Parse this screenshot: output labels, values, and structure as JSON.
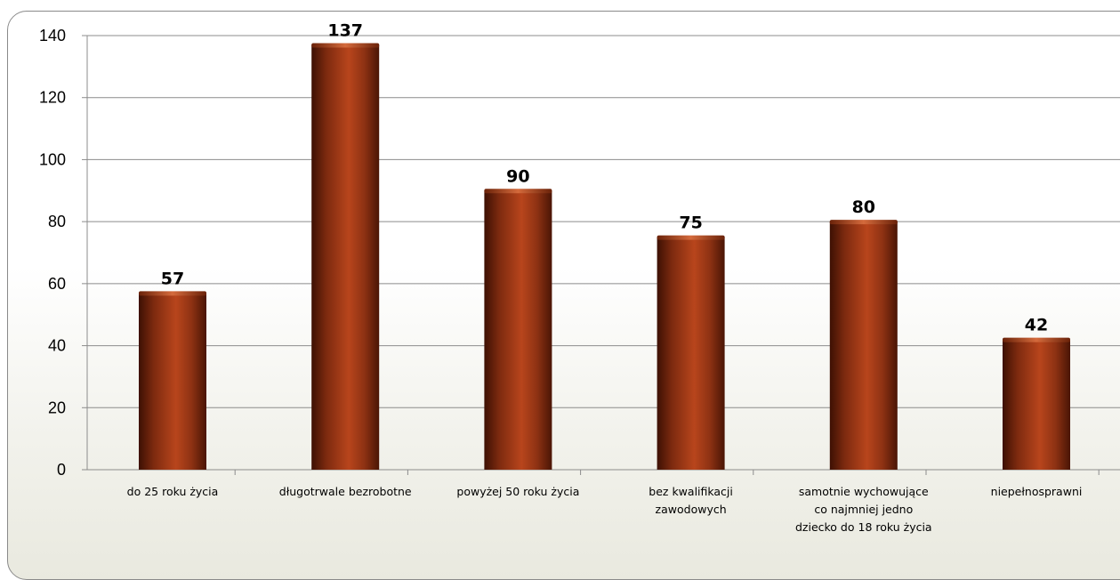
{
  "chart_data": {
    "type": "bar",
    "categories": [
      [
        "do 25 roku życia"
      ],
      [
        "długotrwale bezrobotne"
      ],
      [
        "powyżej 50 roku życia"
      ],
      [
        "bez kwalifikacji",
        "zawodowych"
      ],
      [
        "samotnie wychowujące",
        "co najmniej jedno",
        "dziecko do 18 roku życia"
      ],
      [
        "niepełnosprawni"
      ]
    ],
    "values": [
      57,
      137,
      90,
      75,
      80,
      42
    ],
    "data_labels": [
      "57",
      "137",
      "90",
      "75",
      "80",
      "42"
    ],
    "y_ticks": [
      "0",
      "20",
      "40",
      "60",
      "80",
      "100",
      "120",
      "140"
    ],
    "ylim": [
      0,
      140
    ],
    "grid": true,
    "legend": "none",
    "bar_color": "#a83a17",
    "bar_color_dark": "#4a1505",
    "bar_color_light": "#c8522a",
    "grid_color": "#8c8c8c"
  }
}
